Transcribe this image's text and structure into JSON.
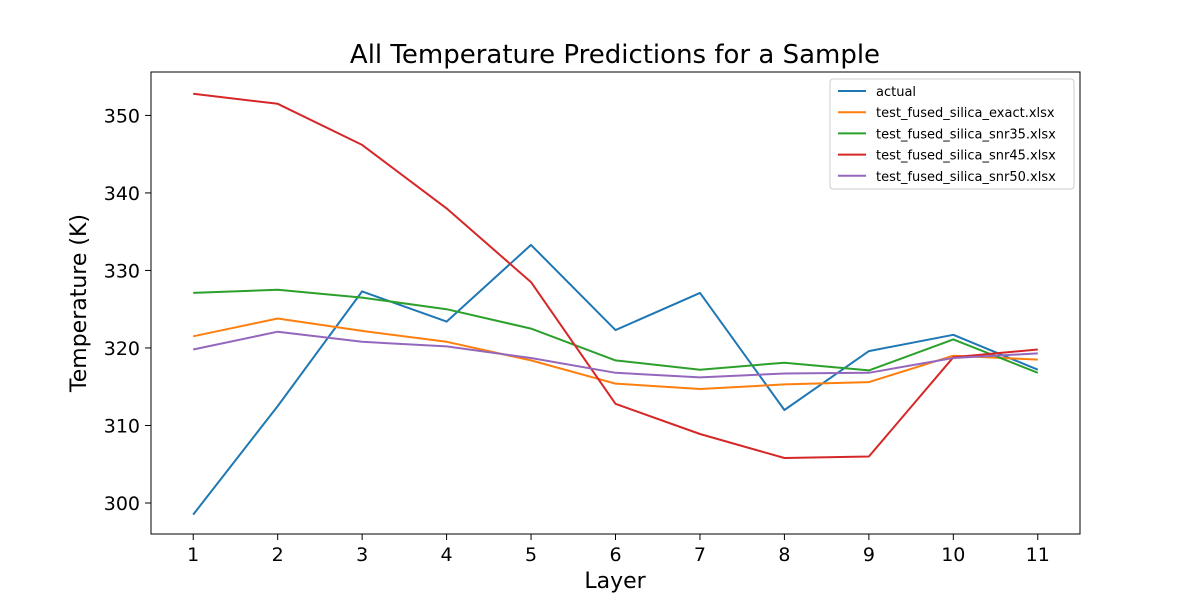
{
  "chart_data": {
    "type": "line",
    "title": "All Temperature Predictions for a Sample",
    "xlabel": "Layer",
    "ylabel": "Temperature (K)",
    "x": [
      1,
      2,
      3,
      4,
      5,
      6,
      7,
      8,
      9,
      10,
      11
    ],
    "xlim": [
      0.5,
      11.5
    ],
    "ylim": [
      296,
      355.6
    ],
    "yticks": [
      300,
      310,
      320,
      330,
      340,
      350
    ],
    "grid": false,
    "legend_position": "top-right",
    "series": [
      {
        "name": "actual",
        "color": "#1f77b4",
        "values": [
          298.5,
          312.5,
          327.3,
          323.4,
          333.3,
          322.3,
          327.1,
          312.0,
          319.6,
          321.7,
          317.2
        ]
      },
      {
        "name": "test_fused_silica_exact.xlsx",
        "color": "#ff7f0e",
        "values": [
          321.5,
          323.8,
          322.2,
          320.8,
          318.4,
          315.4,
          314.7,
          315.3,
          315.6,
          319.0,
          318.5
        ]
      },
      {
        "name": "test_fused_silica_snr35.xlsx",
        "color": "#2ca02c",
        "values": [
          327.1,
          327.5,
          326.5,
          325.0,
          322.5,
          318.4,
          317.2,
          318.1,
          317.1,
          321.1,
          316.8
        ]
      },
      {
        "name": "test_fused_silica_snr45.xlsx",
        "color": "#d62728",
        "values": [
          352.8,
          351.5,
          346.2,
          338.0,
          328.5,
          312.8,
          308.9,
          305.8,
          306.0,
          318.8,
          319.8
        ]
      },
      {
        "name": "test_fused_silica_snr50.xlsx",
        "color": "#9467bd",
        "values": [
          319.8,
          322.1,
          320.8,
          320.2,
          318.7,
          316.8,
          316.2,
          316.7,
          316.8,
          318.7,
          319.3
        ]
      }
    ]
  }
}
